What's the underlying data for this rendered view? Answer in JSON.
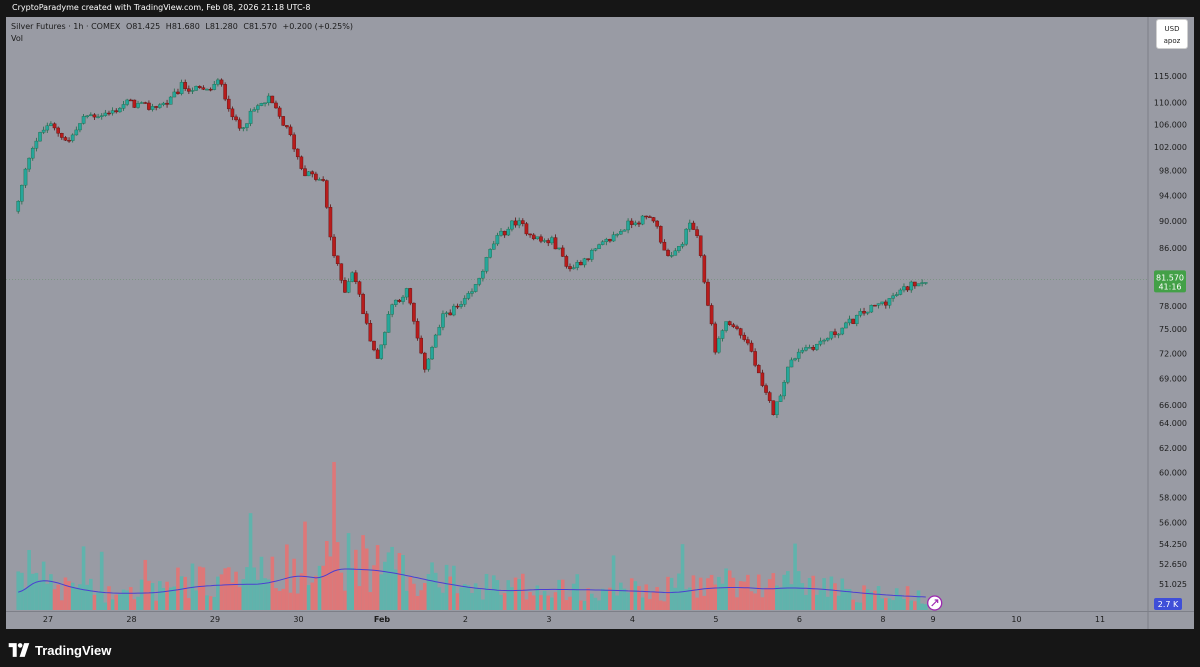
{
  "header": {
    "attribution": "CryptoParadyme created with TradingView.com, Feb 08, 2026 21:18 UTC-8"
  },
  "symbol_info": {
    "name": "Silver Futures · 1h · COMEX",
    "open": "O81.425",
    "high": "H81.680",
    "low": "L81.280",
    "close": "C81.570",
    "change": "+0.200 (+0.25%)"
  },
  "vol_label": "Vol",
  "currency": {
    "code": "USD",
    "user": "apoz"
  },
  "last_price": {
    "value": "81.570",
    "countdown": "41:16"
  },
  "volume_badge": "2.7 K",
  "footer": {
    "brand": "TradingView"
  },
  "colors": {
    "up": "#26a69a",
    "down": "#b71c1c",
    "vol_up": "#5ab6ad",
    "vol_down": "#e57373",
    "vol_ma": "#4a3fd1",
    "background": "#999ba4",
    "badge": "#43a047"
  },
  "chart_data": {
    "type": "candlestick",
    "timeframe": "1h",
    "y_ticks": [
      "115.000",
      "110.000",
      "106.000",
      "102.000",
      "98.000",
      "94.000",
      "90.000",
      "86.000",
      "81.570",
      "78.000",
      "75.000",
      "72.000",
      "69.000",
      "66.000",
      "64.000",
      "62.000",
      "60.000",
      "58.000",
      "56.000",
      "54.250",
      "52.650",
      "51.025"
    ],
    "x_ticks": [
      "27",
      "28",
      "29",
      "30",
      "Feb",
      "2",
      "3",
      "4",
      "5",
      "6",
      "8",
      "9",
      "10",
      "11"
    ],
    "x_ticks_axis": [
      27,
      28,
      29,
      30,
      31,
      32,
      33,
      34,
      35,
      36,
      37,
      37.6,
      38.6,
      39.6
    ],
    "x_range": [
      26.6,
      40.2
    ],
    "anchors": [
      [
        26.62,
        91.5
      ],
      [
        26.8,
        102
      ],
      [
        27.0,
        106
      ],
      [
        27.25,
        103
      ],
      [
        27.45,
        107.5
      ],
      [
        27.75,
        108
      ],
      [
        27.95,
        110
      ],
      [
        28.2,
        109
      ],
      [
        28.45,
        110
      ],
      [
        28.6,
        113
      ],
      [
        28.9,
        112
      ],
      [
        29.05,
        114
      ],
      [
        29.28,
        105
      ],
      [
        29.5,
        109
      ],
      [
        29.65,
        110.5
      ],
      [
        29.9,
        104
      ],
      [
        30.05,
        98
      ],
      [
        30.3,
        96
      ],
      [
        30.4,
        86
      ],
      [
        30.55,
        80
      ],
      [
        30.65,
        83
      ],
      [
        30.8,
        76
      ],
      [
        30.95,
        71
      ],
      [
        31.1,
        78
      ],
      [
        31.3,
        80
      ],
      [
        31.5,
        70
      ],
      [
        31.75,
        77
      ],
      [
        31.95,
        78
      ],
      [
        32.1,
        80
      ],
      [
        32.35,
        87
      ],
      [
        32.6,
        90
      ],
      [
        32.9,
        87
      ],
      [
        33.05,
        87
      ],
      [
        33.25,
        83
      ],
      [
        33.6,
        86
      ],
      [
        33.9,
        89
      ],
      [
        34.0,
        90
      ],
      [
        34.25,
        90.5
      ],
      [
        34.35,
        87
      ],
      [
        34.45,
        84
      ],
      [
        34.6,
        87
      ],
      [
        34.7,
        90
      ],
      [
        34.78,
        87
      ],
      [
        34.88,
        80
      ],
      [
        35.0,
        72
      ],
      [
        35.1,
        76
      ],
      [
        35.25,
        75
      ],
      [
        35.4,
        73
      ],
      [
        35.55,
        68
      ],
      [
        35.7,
        65
      ],
      [
        35.85,
        70
      ],
      [
        36.0,
        72.5
      ],
      [
        36.2,
        73
      ],
      [
        36.5,
        75
      ],
      [
        36.75,
        77
      ],
      [
        37.1,
        79
      ],
      [
        37.4,
        81.3
      ],
      [
        37.52,
        81.57
      ]
    ],
    "volume_anchors": [
      [
        26.62,
        1400
      ],
      [
        26.8,
        3000
      ],
      [
        27.2,
        1600
      ],
      [
        27.6,
        1300
      ],
      [
        28.2,
        1400
      ],
      [
        28.7,
        2000
      ],
      [
        29.15,
        2100
      ],
      [
        29.5,
        2100
      ],
      [
        29.9,
        3000
      ],
      [
        30.2,
        2400
      ],
      [
        30.4,
        3800
      ],
      [
        30.6,
        3300
      ],
      [
        30.9,
        3150
      ],
      [
        31.2,
        2700
      ],
      [
        31.6,
        2100
      ],
      [
        32.0,
        1700
      ],
      [
        32.4,
        1500
      ],
      [
        32.8,
        1700
      ],
      [
        33.2,
        1650
      ],
      [
        33.6,
        1600
      ],
      [
        34.0,
        1500
      ],
      [
        34.4,
        1350
      ],
      [
        34.8,
        1850
      ],
      [
        35.2,
        1850
      ],
      [
        35.55,
        1650
      ],
      [
        35.8,
        1850
      ],
      [
        36.2,
        1650
      ],
      [
        36.6,
        1350
      ],
      [
        37.0,
        1150
      ],
      [
        37.52,
        1000
      ]
    ],
    "volume_max": 12000,
    "last_volume": 2700
  }
}
